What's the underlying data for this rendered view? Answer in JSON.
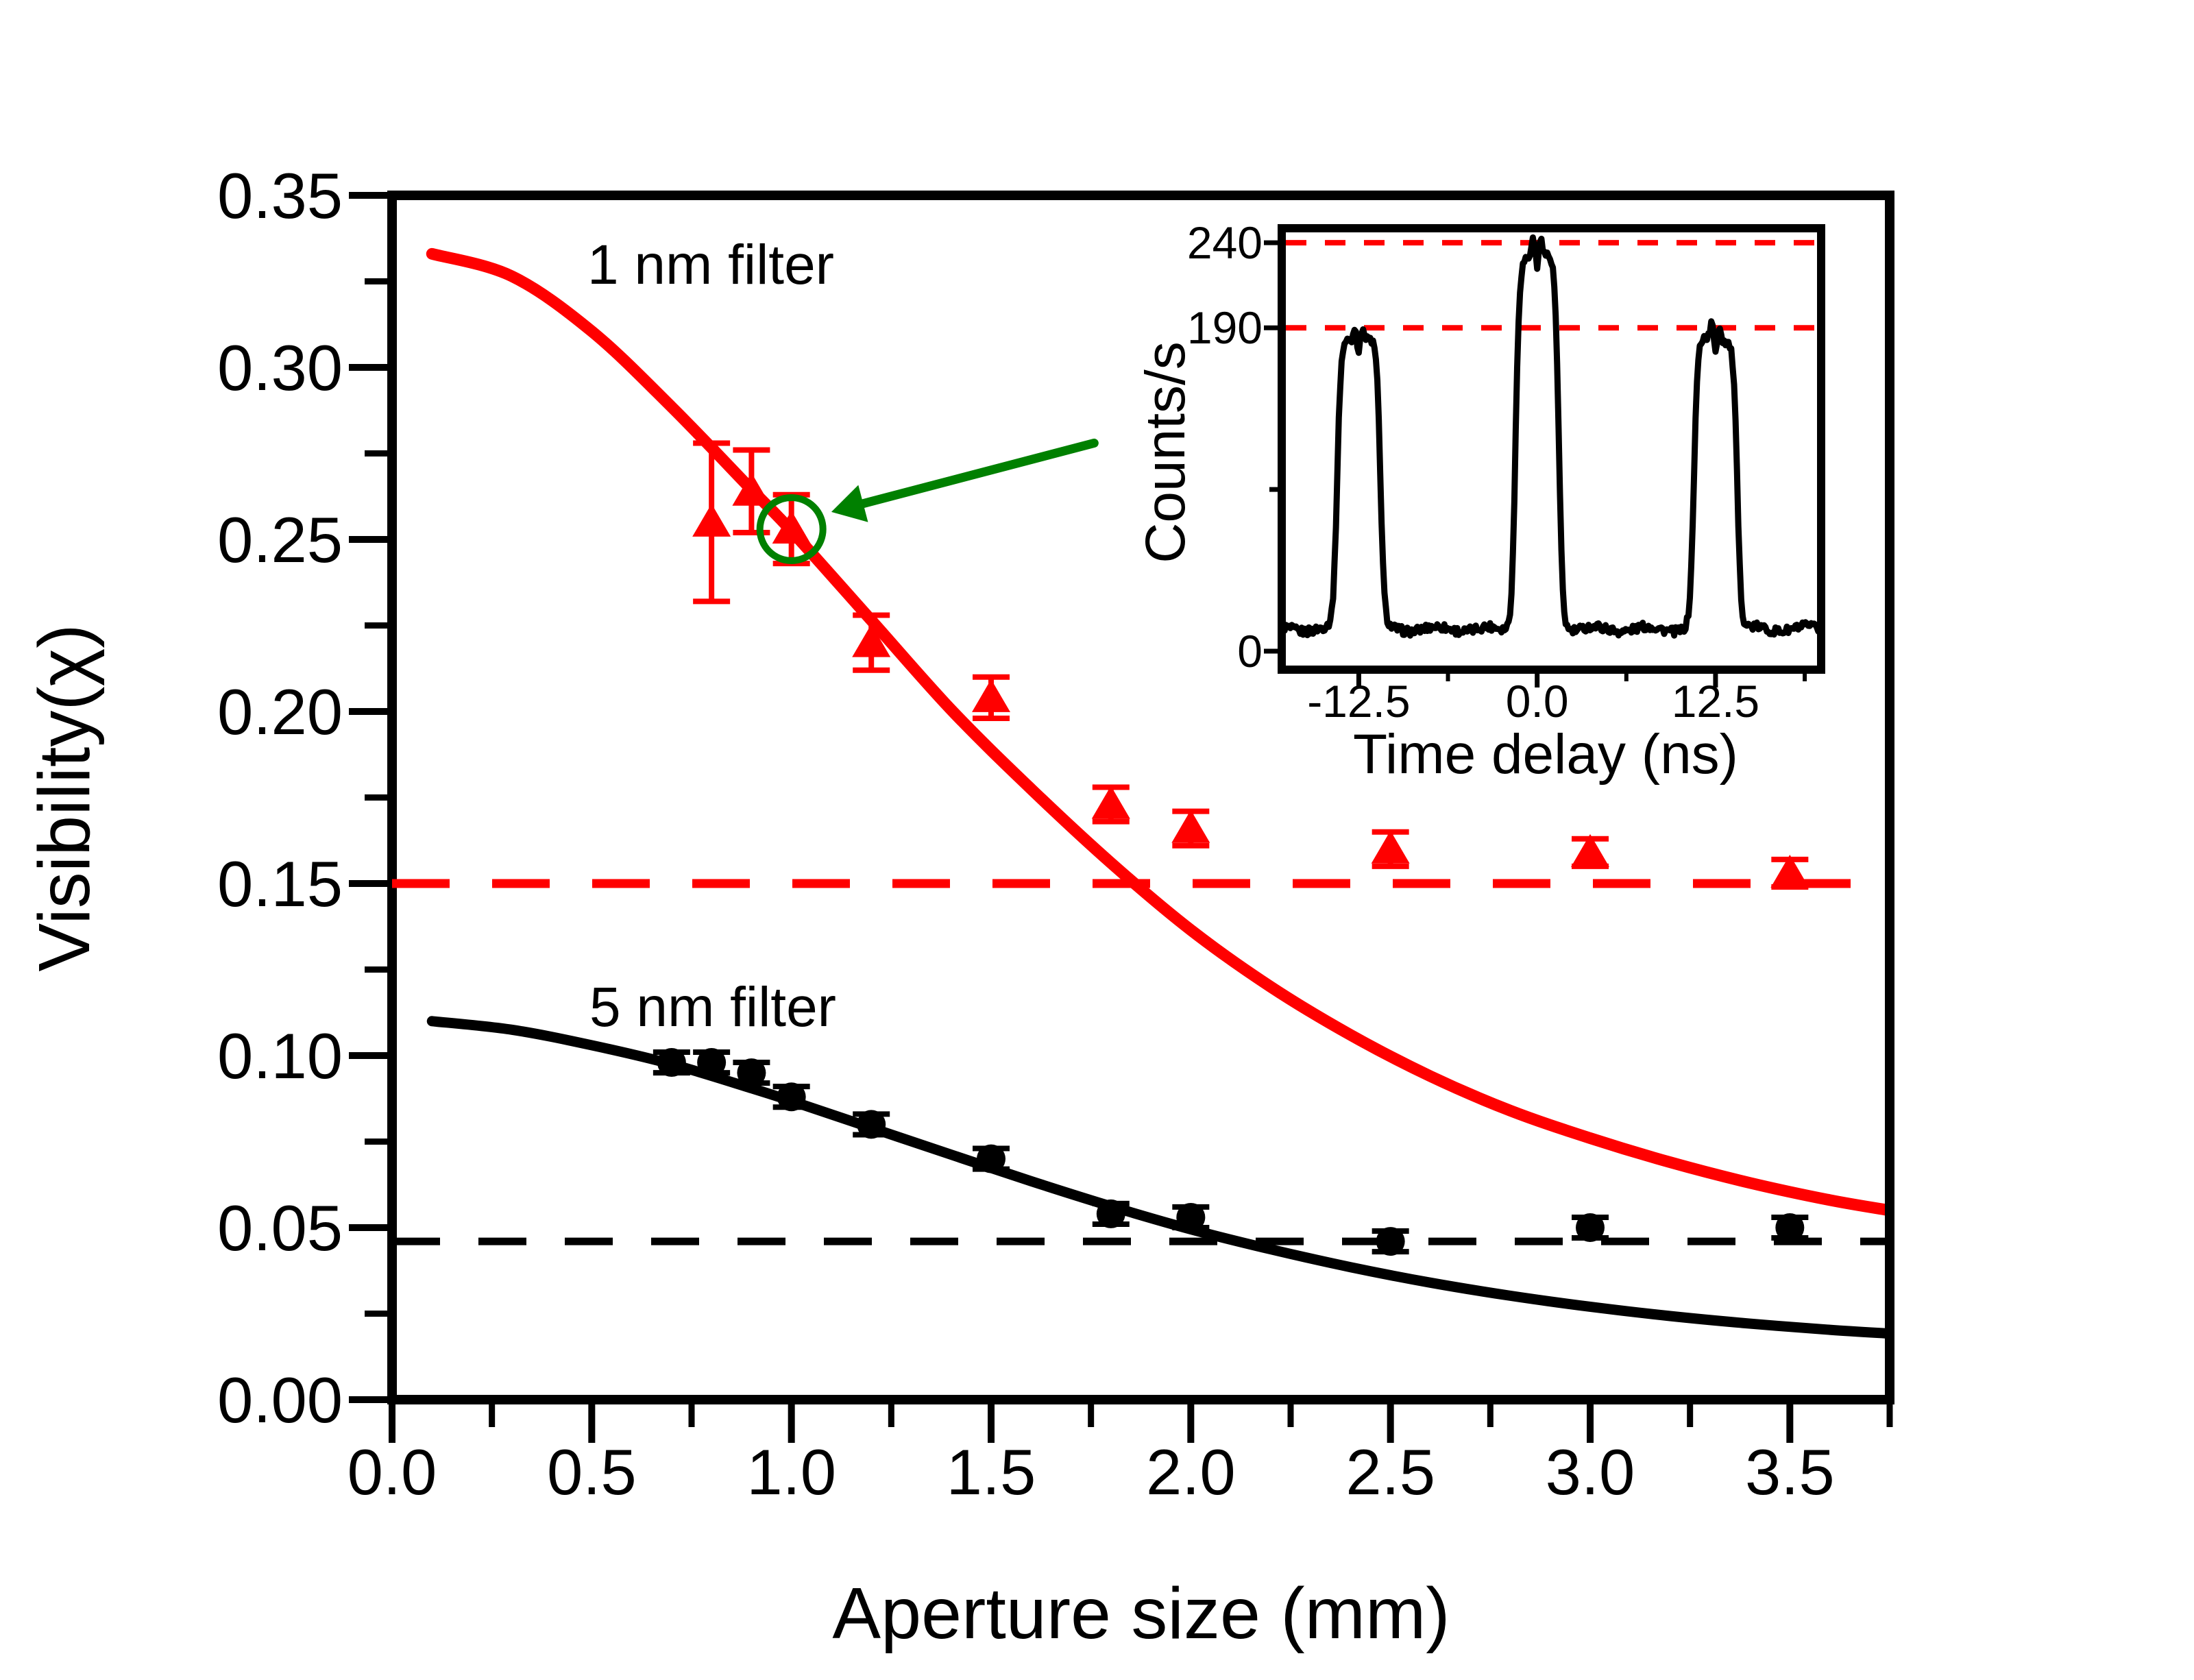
{
  "colors": {
    "series_1nm": "#ff0000",
    "series_5nm": "#000000",
    "annotation_green": "#008000",
    "background": "#ffffff"
  },
  "chart_data": [
    {
      "id": "main",
      "type": "scatter",
      "title": "",
      "xlabel": "Aperture size (mm)",
      "ylabel": "Visibility(χ)",
      "xlim": [
        0,
        3.75
      ],
      "ylim": [
        0,
        0.35
      ],
      "grid": false,
      "legend_position": "inline-text-labels",
      "x_major_ticks": [
        0,
        0.5,
        1.0,
        1.5,
        2.0,
        2.5,
        3.0,
        3.5
      ],
      "x_major_tick_labels": [
        "0.0",
        "0.5",
        "1.0",
        "1.5",
        "2.0",
        "2.5",
        "3.0",
        "3.5"
      ],
      "x_minor_ticks": [
        0.25,
        0.75,
        1.25,
        1.75,
        2.25,
        2.75,
        3.25,
        3.75
      ],
      "y_major_ticks": [
        0,
        0.05,
        0.1,
        0.15,
        0.2,
        0.25,
        0.3,
        0.35
      ],
      "y_major_tick_labels": [
        "0.00",
        "0.05",
        "0.10",
        "0.15",
        "0.20",
        "0.25",
        "0.30",
        "0.35"
      ],
      "y_minor_ticks": [
        0.025,
        0.075,
        0.125,
        0.175,
        0.225,
        0.275,
        0.325
      ],
      "series": [
        {
          "name": "1 nm filter",
          "marker": "triangle",
          "color": "#ff0000",
          "label_pos": [
            0.8,
            0.33
          ],
          "points": [
            [
              0.8,
              0.255,
              0.023
            ],
            [
              0.9,
              0.264,
              0.012
            ],
            [
              1.0,
              0.253,
              0.01
            ],
            [
              1.2,
              0.22,
              0.008
            ],
            [
              1.5,
              0.204,
              0.006
            ],
            [
              1.8,
              0.173,
              0.005
            ],
            [
              2.0,
              0.166,
              0.005
            ],
            [
              2.5,
              0.16,
              0.005
            ],
            [
              3.0,
              0.159,
              0.004
            ],
            [
              3.5,
              0.153,
              0.004
            ]
          ]
        },
        {
          "name": "5 nm filter",
          "marker": "circle",
          "color": "#000000",
          "label_pos": [
            0.8,
            0.114
          ],
          "points": [
            [
              0.7,
              0.098,
              0.003
            ],
            [
              0.8,
              0.098,
              0.003
            ],
            [
              0.9,
              0.095,
              0.003
            ],
            [
              1.0,
              0.088,
              0.003
            ],
            [
              1.2,
              0.08,
              0.003
            ],
            [
              1.5,
              0.07,
              0.003
            ],
            [
              1.8,
              0.054,
              0.003
            ],
            [
              2.0,
              0.053,
              0.003
            ],
            [
              2.5,
              0.046,
              0.003
            ],
            [
              3.0,
              0.05,
              0.003
            ],
            [
              3.5,
              0.05,
              0.003
            ]
          ]
        }
      ],
      "fit_curves": [
        {
          "series": "1 nm filter",
          "color": "#ff0000",
          "points": [
            [
              0.1,
              0.333
            ],
            [
              0.3,
              0.3265
            ],
            [
              0.5,
              0.3105
            ],
            [
              0.7,
              0.2885
            ],
            [
              0.9,
              0.2645
            ],
            [
              1.0,
              0.2525
            ],
            [
              1.2,
              0.2265
            ],
            [
              1.4,
              0.2005
            ],
            [
              1.6,
              0.1775
            ],
            [
              1.8,
              0.156
            ],
            [
              2.0,
              0.1365
            ],
            [
              2.2,
              0.12
            ],
            [
              2.4,
              0.106
            ],
            [
              2.6,
              0.094
            ],
            [
              2.8,
              0.084
            ],
            [
              3.0,
              0.076
            ],
            [
              3.2,
              0.069
            ],
            [
              3.4,
              0.063
            ],
            [
              3.6,
              0.058
            ],
            [
              3.75,
              0.055
            ]
          ]
        },
        {
          "series": "5 nm filter",
          "color": "#000000",
          "points": [
            [
              0.1,
              0.11
            ],
            [
              0.3,
              0.1075
            ],
            [
              0.5,
              0.103
            ],
            [
              0.7,
              0.0975
            ],
            [
              0.9,
              0.0905
            ],
            [
              1.0,
              0.0868
            ],
            [
              1.2,
              0.079
            ],
            [
              1.4,
              0.0712
            ],
            [
              1.6,
              0.0635
            ],
            [
              1.8,
              0.0562
            ],
            [
              2.0,
              0.0495
            ],
            [
              2.2,
              0.0437
            ],
            [
              2.4,
              0.0385
            ],
            [
              2.6,
              0.034
            ],
            [
              2.8,
              0.0302
            ],
            [
              3.0,
              0.027
            ],
            [
              3.2,
              0.0243
            ],
            [
              3.4,
              0.0221
            ],
            [
              3.6,
              0.0203
            ],
            [
              3.75,
              0.0192
            ]
          ]
        }
      ],
      "reference_lines": [
        {
          "y": 0.15,
          "color": "#ff0000",
          "style": "dashed"
        },
        {
          "y": 0.046,
          "color": "#000000",
          "style": "dashed"
        }
      ],
      "annotations": {
        "color": "#008000",
        "circled_point": {
          "x": 1.0,
          "y": 0.253
        },
        "arrow": {
          "from": [
            1.758,
            0.278
          ],
          "to": [
            1.1,
            0.258
          ]
        }
      }
    },
    {
      "id": "inset",
      "type": "line",
      "xlabel": "Time delay (ns)",
      "ylabel": "Counts/s",
      "xlim": [
        -17.9,
        19.9
      ],
      "ylim": [
        -10.9,
        248.5
      ],
      "x_major_ticks": [
        -12.5,
        0,
        12.5
      ],
      "x_major_tick_labels": [
        "-12.5",
        "0.0",
        "12.5"
      ],
      "x_minor_ticks": [
        -6.25,
        6.25,
        18.75
      ],
      "y_ticks": [
        {
          "value": 240,
          "label": "240",
          "major": true
        },
        {
          "value": 190,
          "label": "190",
          "major": true
        },
        {
          "value": 95,
          "label": "",
          "major": false
        },
        {
          "value": 0,
          "label": "0",
          "major": true
        }
      ],
      "reference_lines": [
        {
          "y": 240,
          "color": "#ff0000",
          "style": "dashed"
        },
        {
          "y": 190,
          "color": "#ff0000",
          "style": "dashed"
        }
      ],
      "trace": {
        "color": "#000000",
        "baseline_counts": 13,
        "noise_amplitude": 2.5,
        "edge_half_width_ns": 1.52,
        "peaks": [
          {
            "center_ns": -12.5,
            "height_counts": 190
          },
          {
            "center_ns": 0.0,
            "height_counts": 240
          },
          {
            "center_ns": 12.5,
            "height_counts": 190
          }
        ]
      }
    }
  ]
}
